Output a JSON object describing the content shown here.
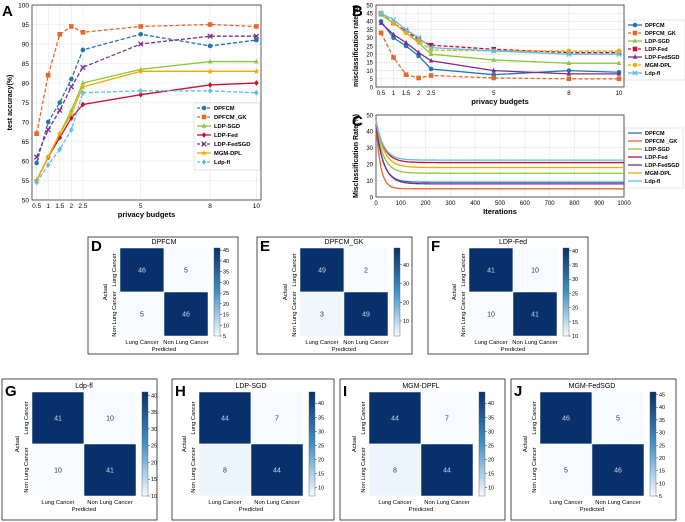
{
  "colors": {
    "DPFCM": "#1f77b4",
    "DPFCM_GK": "#e8672b",
    "LDP-SGD": "#8dc63f",
    "LDP-Fed": "#c8102e",
    "LDP-FedSGD": "#7b2d8e",
    "MGM-DPL": "#f2a900",
    "Ldp-fl": "#5bc0eb",
    "heat_low": "#f7fbff",
    "heat_high": "#08306b"
  },
  "chart_data": [
    {
      "panel": "A",
      "type": "line",
      "title": "",
      "xlabel": "privacy budgets",
      "ylabel": "test accuracy(%)",
      "x": [
        0.5,
        1,
        1.5,
        2,
        2.5,
        5,
        8,
        10
      ],
      "xticks": [
        "0.5",
        "1",
        "1.5",
        "2",
        "2.5",
        "5",
        "8",
        "10"
      ],
      "ylim": [
        50,
        100
      ],
      "yticks": [
        "50",
        "55",
        "60",
        "65",
        "70",
        "75",
        "80",
        "85",
        "90",
        "95",
        "100"
      ],
      "legend_position": "bottom-right",
      "series": [
        {
          "name": "DPFCM",
          "style": "dashed",
          "marker": "circle",
          "values": [
            59.5,
            70,
            75,
            81,
            88.5,
            92.5,
            89.5,
            91
          ]
        },
        {
          "name": "DPFCM_GK",
          "style": "dashed",
          "marker": "square",
          "values": [
            67,
            82,
            92.5,
            94.5,
            93,
            94.5,
            95,
            94.5
          ]
        },
        {
          "name": "LDP-SGD",
          "style": "solid",
          "marker": "triangle",
          "values": [
            55,
            61,
            67,
            73,
            80,
            83.5,
            85.5,
            85.5
          ]
        },
        {
          "name": "LDP-Fed",
          "style": "solid",
          "marker": "diamond",
          "values": [
            55,
            61,
            66,
            71,
            74.5,
            77,
            79.5,
            80
          ]
        },
        {
          "name": "LDP-FedSGD",
          "style": "dashed",
          "marker": "cross",
          "values": [
            61,
            68,
            73,
            79,
            84,
            90,
            92,
            92
          ]
        },
        {
          "name": "MGM-DPL",
          "style": "solid",
          "marker": "star",
          "values": [
            55,
            61,
            67,
            72,
            79,
            83,
            83,
            83
          ]
        },
        {
          "name": "Ldp-fl",
          "style": "dashed",
          "marker": "diamond",
          "values": [
            54.5,
            59,
            63,
            68,
            77.5,
            78,
            78,
            77.5
          ]
        }
      ]
    },
    {
      "panel": "B",
      "type": "line",
      "title": "",
      "xlabel": "privacy budgets",
      "ylabel": "misclassification rate(%)",
      "x": [
        0.5,
        1,
        1.5,
        2,
        2.5,
        5,
        8,
        10
      ],
      "xticks": [
        "0.5",
        "1",
        "1.5",
        "2",
        "2.5",
        "5",
        "8",
        "10"
      ],
      "ylim": [
        0,
        50
      ],
      "yticks": [
        "0",
        "5",
        "10",
        "15",
        "20",
        "25",
        "30",
        "35",
        "40",
        "45",
        "50"
      ],
      "legend_position": "right",
      "series": [
        {
          "name": "DPFCM",
          "style": "solid",
          "marker": "circle",
          "values": [
            40,
            30,
            25,
            19,
            11,
            7.5,
            10,
            9
          ]
        },
        {
          "name": "DPFCM_GK",
          "style": "dashed",
          "marker": "square",
          "values": [
            33,
            18,
            7.5,
            5.5,
            7,
            5.5,
            5,
            5
          ]
        },
        {
          "name": "LDP-SGD",
          "style": "solid",
          "marker": "triangle",
          "values": [
            44,
            39,
            33,
            27,
            20,
            16.5,
            14.5,
            14.5
          ]
        },
        {
          "name": "LDP-Fed",
          "style": "dashed",
          "marker": "square",
          "values": [
            45,
            39,
            34,
            29,
            25.5,
            23,
            21,
            21
          ]
        },
        {
          "name": "LDP-FedSGD",
          "style": "solid",
          "marker": "triangle",
          "values": [
            39,
            32,
            27,
            21,
            16,
            10,
            8,
            8
          ]
        },
        {
          "name": "MGM-DPL",
          "style": "dashed",
          "marker": "circle",
          "values": [
            45,
            39,
            33,
            28,
            22.5,
            22,
            22,
            22
          ]
        },
        {
          "name": "Ldp-fl",
          "style": "solid",
          "marker": "cross",
          "values": [
            45,
            41,
            35,
            30,
            24,
            22,
            20,
            20
          ]
        }
      ]
    },
    {
      "panel": "C",
      "type": "line",
      "title": "",
      "xlabel": "Iterations",
      "ylabel": "Misclassification Rate(%)",
      "xlim": [
        0,
        1000
      ],
      "xticks": [
        "0",
        "100",
        "200",
        "300",
        "400",
        "500",
        "600",
        "700",
        "800",
        "900",
        "1000"
      ],
      "ylim": [
        0,
        50
      ],
      "yticks": [
        "0",
        "10",
        "20",
        "30",
        "40",
        "50"
      ],
      "legend_position": "top-right",
      "series": [
        {
          "name": "DPFCM",
          "start": 44,
          "final": 9,
          "decay": 28
        },
        {
          "name": "DPFCM _GK",
          "start": 44,
          "final": 5,
          "decay": 18
        },
        {
          "name": "LDP-SGD",
          "start": 44,
          "final": 14.5,
          "decay": 30
        },
        {
          "name": "LDP-Fed",
          "start": 46,
          "final": 21,
          "decay": 32
        },
        {
          "name": "LDP-FedSGD",
          "start": 44,
          "final": 8,
          "decay": 30
        },
        {
          "name": "MGM-DPL",
          "start": 46,
          "final": 18,
          "decay": 32
        },
        {
          "name": "Ldp-fl",
          "start": 47,
          "final": 22.5,
          "decay": 30
        }
      ]
    },
    {
      "panel": "D",
      "type": "heatmap",
      "title": "DPFCM",
      "xlabel": "Predicted",
      "ylabel": "Actual",
      "rows": [
        "Lung Cancer",
        "Non Lung Cancer"
      ],
      "cols": [
        "Lung Cancer",
        "Non Lung Cancer"
      ],
      "values": [
        [
          46,
          5
        ],
        [
          5,
          46
        ]
      ],
      "colorbar_ticks": [
        5,
        10,
        15,
        20,
        25,
        30,
        35,
        40,
        45
      ]
    },
    {
      "panel": "E",
      "type": "heatmap",
      "title": "DPFCM_GK",
      "xlabel": "Predicted",
      "ylabel": "Actual",
      "rows": [
        "Lung Cancer",
        "Non Lung Cancer"
      ],
      "cols": [
        "Lung Cancer",
        "Non Lung Cancer"
      ],
      "values": [
        [
          49,
          2
        ],
        [
          3,
          49
        ]
      ],
      "colorbar_ticks": [
        10,
        20,
        30,
        40
      ]
    },
    {
      "panel": "F",
      "type": "heatmap",
      "title": "LDP-Fed",
      "xlabel": "Predicted",
      "ylabel": "Actual",
      "rows": [
        "Lung Cancer",
        "Non Lung Cancer"
      ],
      "cols": [
        "Lung Cancer",
        "Non Lung Cancer"
      ],
      "values": [
        [
          41,
          10
        ],
        [
          10,
          41
        ]
      ],
      "colorbar_ticks": [
        10,
        15,
        20,
        25,
        30,
        35,
        40
      ]
    },
    {
      "panel": "G",
      "type": "heatmap",
      "title": "Ldp-fl",
      "xlabel": "Predicted",
      "ylabel": "Actual",
      "rows": [
        "Lung Cancer",
        "Non Lung Cancer"
      ],
      "cols": [
        "Lung Cancer",
        "Non Lung Cancer"
      ],
      "values": [
        [
          41,
          10
        ],
        [
          10,
          41
        ]
      ],
      "colorbar_ticks": [
        10,
        15,
        20,
        25,
        30,
        35,
        40
      ]
    },
    {
      "panel": "H",
      "type": "heatmap",
      "title": "LDP-SGD",
      "xlabel": "Predicted",
      "ylabel": "Actual",
      "rows": [
        "Lung Cancer",
        "Non Lung Cancer"
      ],
      "cols": [
        "Lung Cancer",
        "Non Lung Cancer"
      ],
      "values": [
        [
          44,
          7
        ],
        [
          8,
          44
        ]
      ],
      "colorbar_ticks": [
        10,
        15,
        20,
        25,
        30,
        35,
        40
      ]
    },
    {
      "panel": "I",
      "type": "heatmap",
      "title": "MGM-DPFL",
      "xlabel": "Predicted",
      "ylabel": "Actual",
      "rows": [
        "Lung Cancer",
        "Non Lung Cancer"
      ],
      "cols": [
        "Lung Cancer",
        "Non Lung Cancer"
      ],
      "values": [
        [
          44,
          7
        ],
        [
          8,
          44
        ]
      ],
      "colorbar_ticks": [
        10,
        15,
        20,
        25,
        30,
        35,
        40
      ]
    },
    {
      "panel": "J",
      "type": "heatmap",
      "title": "MGM-FedSGD",
      "xlabel": "Predicted",
      "ylabel": "Actual",
      "rows": [
        "Lung Cancer",
        "Non Lung Cancer"
      ],
      "cols": [
        "Lung Cancer",
        "Non Lung Cancer"
      ],
      "values": [
        [
          46,
          5
        ],
        [
          5,
          46
        ]
      ],
      "colorbar_ticks": [
        5,
        10,
        15,
        20,
        25,
        30,
        35,
        40,
        45
      ]
    }
  ]
}
